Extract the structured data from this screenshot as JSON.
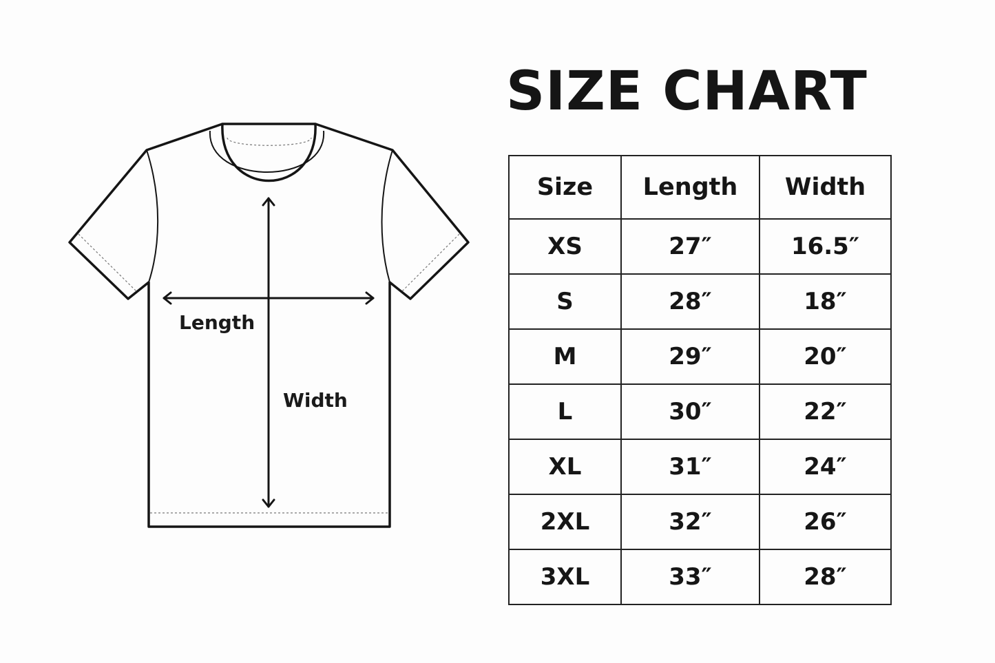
{
  "title": "SIZE CHART",
  "diagram": {
    "length_label": "Length",
    "width_label": "Width"
  },
  "table": {
    "headers": [
      "Size",
      "Length",
      "Width"
    ],
    "rows": [
      [
        "XS",
        "27″",
        "16.5″"
      ],
      [
        "S",
        "28″",
        "18″"
      ],
      [
        "M",
        "29″",
        "20″"
      ],
      [
        "L",
        "30″",
        "22″"
      ],
      [
        "XL",
        "31″",
        "24″"
      ],
      [
        "2XL",
        "32″",
        "26″"
      ],
      [
        "3XL",
        "33″",
        "28″"
      ]
    ]
  }
}
